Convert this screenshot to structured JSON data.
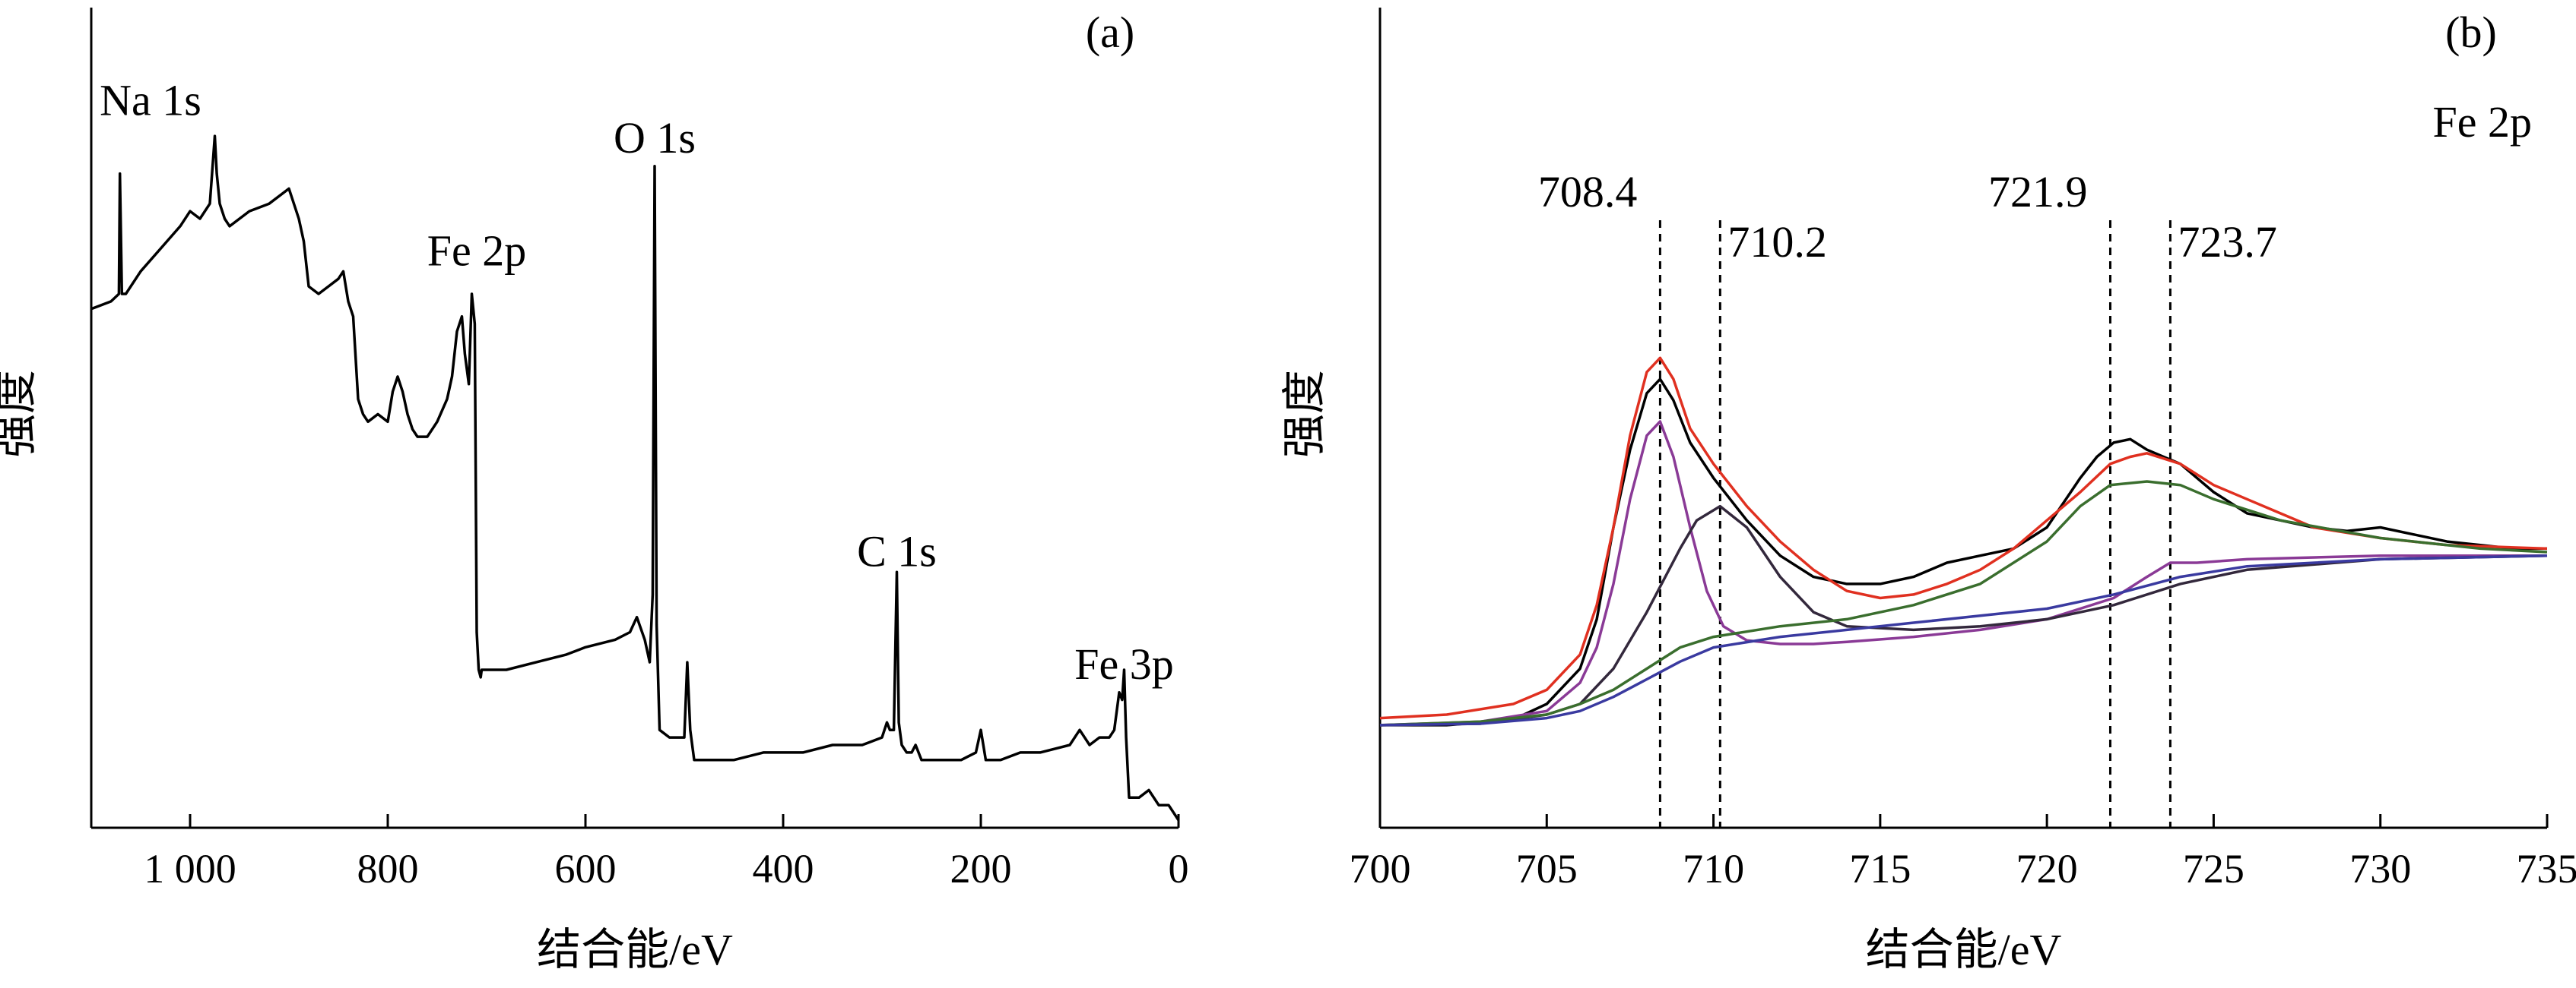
{
  "chart_data": [
    {
      "panel": "(a)",
      "type": "line",
      "xlabel": "结合能/eV",
      "ylabel": "强度",
      "xlim": [
        1100,
        0
      ],
      "x_reversed": true,
      "ylim": [
        0,
        100
      ],
      "yticks_shown": false,
      "xticks": [
        1000,
        800,
        600,
        400,
        200,
        0
      ],
      "xtick_labels": [
        "1 000",
        "800",
        "600",
        "400",
        "200",
        "0"
      ],
      "grid": false,
      "annotations": [
        {
          "text": "Na 1s",
          "x": 1040,
          "y": 93
        },
        {
          "text": "O 1s",
          "x": 530,
          "y": 88
        },
        {
          "text": "Fe 2p",
          "x": 710,
          "y": 73
        },
        {
          "text": "C 1s",
          "x": 285,
          "y": 33
        },
        {
          "text": "Fe 3p",
          "x": 55,
          "y": 18
        }
      ],
      "series": [
        {
          "color": "#000000",
          "x": [
            1100,
            1080,
            1072,
            1071,
            1069,
            1065,
            1050,
            1030,
            1010,
            1000,
            990,
            980,
            975,
            973,
            970,
            965,
            960,
            940,
            920,
            900,
            890,
            885,
            880,
            870,
            860,
            850,
            845,
            840,
            835,
            830,
            825,
            820,
            810,
            800,
            795,
            790,
            785,
            780,
            775,
            770,
            760,
            750,
            740,
            735,
            730,
            725,
            722,
            718,
            715,
            712,
            710,
            708,
            706,
            705,
            700,
            680,
            650,
            620,
            600,
            570,
            555,
            548,
            540,
            535,
            532,
            530,
            528,
            525,
            515,
            505,
            500,
            497,
            494,
            490,
            470,
            450,
            420,
            400,
            380,
            350,
            320,
            300,
            295,
            292,
            288,
            285,
            283,
            280,
            275,
            270,
            266,
            260,
            240,
            220,
            205,
            200,
            195,
            180,
            160,
            140,
            110,
            100,
            95,
            90,
            80,
            70,
            65,
            60,
            57,
            55,
            53,
            50,
            40,
            30,
            20,
            10,
            5,
            0
          ],
          "y": [
            68,
            69,
            70,
            86,
            70,
            70,
            73,
            76,
            79,
            81,
            80,
            82,
            91,
            86,
            82,
            80,
            79,
            81,
            82,
            84,
            80,
            77,
            71,
            70,
            71,
            72,
            73,
            69,
            67,
            56,
            54,
            53,
            54,
            53,
            57,
            59,
            57,
            54,
            52,
            51,
            51,
            53,
            56,
            59,
            65,
            67,
            62,
            58,
            70,
            66,
            25,
            20,
            19,
            20,
            20,
            20,
            21,
            22,
            23,
            24,
            25,
            27,
            24,
            21,
            30,
            87,
            26,
            12,
            11,
            11,
            11,
            21,
            12,
            8,
            8,
            8,
            9,
            9,
            9,
            10,
            10,
            11,
            13,
            12,
            12,
            33,
            13,
            10,
            9,
            9,
            10,
            8,
            8,
            8,
            9,
            12,
            8,
            8,
            9,
            9,
            10,
            12,
            11,
            10,
            11,
            11,
            12,
            17,
            16,
            20,
            11,
            3,
            3,
            4,
            2,
            2,
            1,
            0
          ]
        }
      ]
    },
    {
      "panel": "(b)",
      "type": "line",
      "subtitle": "Fe 2p",
      "xlabel": "结合能/eV",
      "ylabel": "强度",
      "xlim": [
        700,
        735
      ],
      "ylim": [
        0,
        100
      ],
      "yticks_shown": false,
      "xticks": [
        700,
        705,
        710,
        715,
        720,
        725,
        730,
        735
      ],
      "xtick_labels": [
        "700",
        "705",
        "710",
        "715",
        "720",
        "725",
        "730",
        "735"
      ],
      "grid": false,
      "reference_lines": [
        {
          "x": 708.4,
          "label": "708.4",
          "style": "dashed"
        },
        {
          "x": 710.2,
          "label": "710.2",
          "style": "dashed"
        },
        {
          "x": 721.9,
          "label": "721.9",
          "style": "dashed"
        },
        {
          "x": 723.7,
          "label": "723.7",
          "style": "dashed"
        }
      ],
      "series": [
        {
          "color": "#000000",
          "x": [
            700,
            702,
            704,
            705,
            706,
            706.5,
            707,
            707.5,
            708,
            708.4,
            708.8,
            709.3,
            710,
            711,
            712,
            713,
            714,
            715,
            716,
            717,
            718,
            719,
            720,
            721,
            721.5,
            722,
            722.5,
            723,
            724,
            725,
            726,
            727,
            728,
            729,
            730,
            731,
            732,
            733,
            734,
            735
          ],
          "y": [
            7,
            7,
            7.8,
            10,
            15,
            22,
            35,
            46,
            54,
            56,
            53,
            47,
            42,
            36,
            31,
            28,
            27,
            27,
            28,
            30,
            31,
            32,
            35,
            42,
            45,
            47,
            47.5,
            46,
            44,
            40,
            37,
            36,
            35,
            34.5,
            35,
            34,
            33,
            32.5,
            32,
            32
          ]
        },
        {
          "color": "#e03020",
          "x": [
            700,
            702,
            704,
            705,
            706,
            706.5,
            707,
            707.5,
            708,
            708.4,
            708.8,
            709.3,
            710,
            711,
            712,
            713,
            714,
            715,
            716,
            717,
            718,
            719,
            720,
            721,
            721.9,
            722.5,
            723,
            724,
            725,
            726,
            727,
            728,
            730,
            732,
            735
          ],
          "y": [
            8,
            8.5,
            10,
            12,
            17,
            24,
            35,
            48,
            57,
            59,
            56,
            49,
            44,
            38,
            33,
            29,
            26,
            25,
            25.5,
            27,
            29,
            32,
            36,
            40,
            44,
            45,
            45.5,
            44,
            41,
            39,
            37,
            35,
            33.5,
            32.5,
            32
          ]
        },
        {
          "color": "#8a3a96",
          "x": [
            700,
            703,
            705,
            706,
            706.5,
            707,
            707.5,
            708,
            708.4,
            708.8,
            709.3,
            709.8,
            710.3,
            711,
            712,
            713,
            714,
            716,
            718,
            720,
            722,
            723,
            723.7,
            724.5,
            726,
            730,
            735
          ],
          "y": [
            7,
            7.5,
            9,
            13,
            18,
            27,
            39,
            48,
            50,
            45,
            35,
            26,
            21,
            19,
            18.5,
            18.5,
            18.8,
            19.5,
            20.5,
            22,
            25,
            28,
            30,
            30,
            30.5,
            31,
            31
          ]
        },
        {
          "color": "#33283c",
          "x": [
            700,
            703,
            705,
            706,
            707,
            708,
            709,
            709.5,
            710.2,
            711,
            712,
            713,
            714,
            716,
            718,
            720,
            722,
            724,
            726,
            730,
            735
          ],
          "y": [
            7,
            7.2,
            8.5,
            10,
            15,
            23,
            32,
            36,
            38,
            35,
            28,
            23,
            21,
            20.5,
            21,
            22,
            24,
            27,
            29,
            30.5,
            31
          ]
        },
        {
          "color": "#3a6e2e",
          "x": [
            700,
            703,
            705,
            706,
            707,
            708,
            709,
            710,
            712,
            714,
            716,
            718,
            720,
            721,
            721.9,
            723,
            724,
            725,
            727,
            730,
            733,
            735
          ],
          "y": [
            7,
            7.5,
            8.5,
            10,
            12,
            15,
            18,
            19.5,
            21,
            22,
            24,
            27,
            33,
            38,
            41,
            41.5,
            41,
            39,
            36,
            33.5,
            32,
            31.5
          ]
        },
        {
          "color": "#3a3aa0",
          "x": [
            700,
            703,
            705,
            706,
            707,
            708,
            709,
            710,
            712,
            714,
            716,
            718,
            720,
            722,
            724,
            726,
            730,
            735
          ],
          "y": [
            7,
            7.2,
            8,
            9,
            11,
            13.5,
            16,
            18,
            19.5,
            20.5,
            21.5,
            22.5,
            23.5,
            25.5,
            28,
            29.5,
            30.5,
            31
          ]
        }
      ]
    }
  ]
}
